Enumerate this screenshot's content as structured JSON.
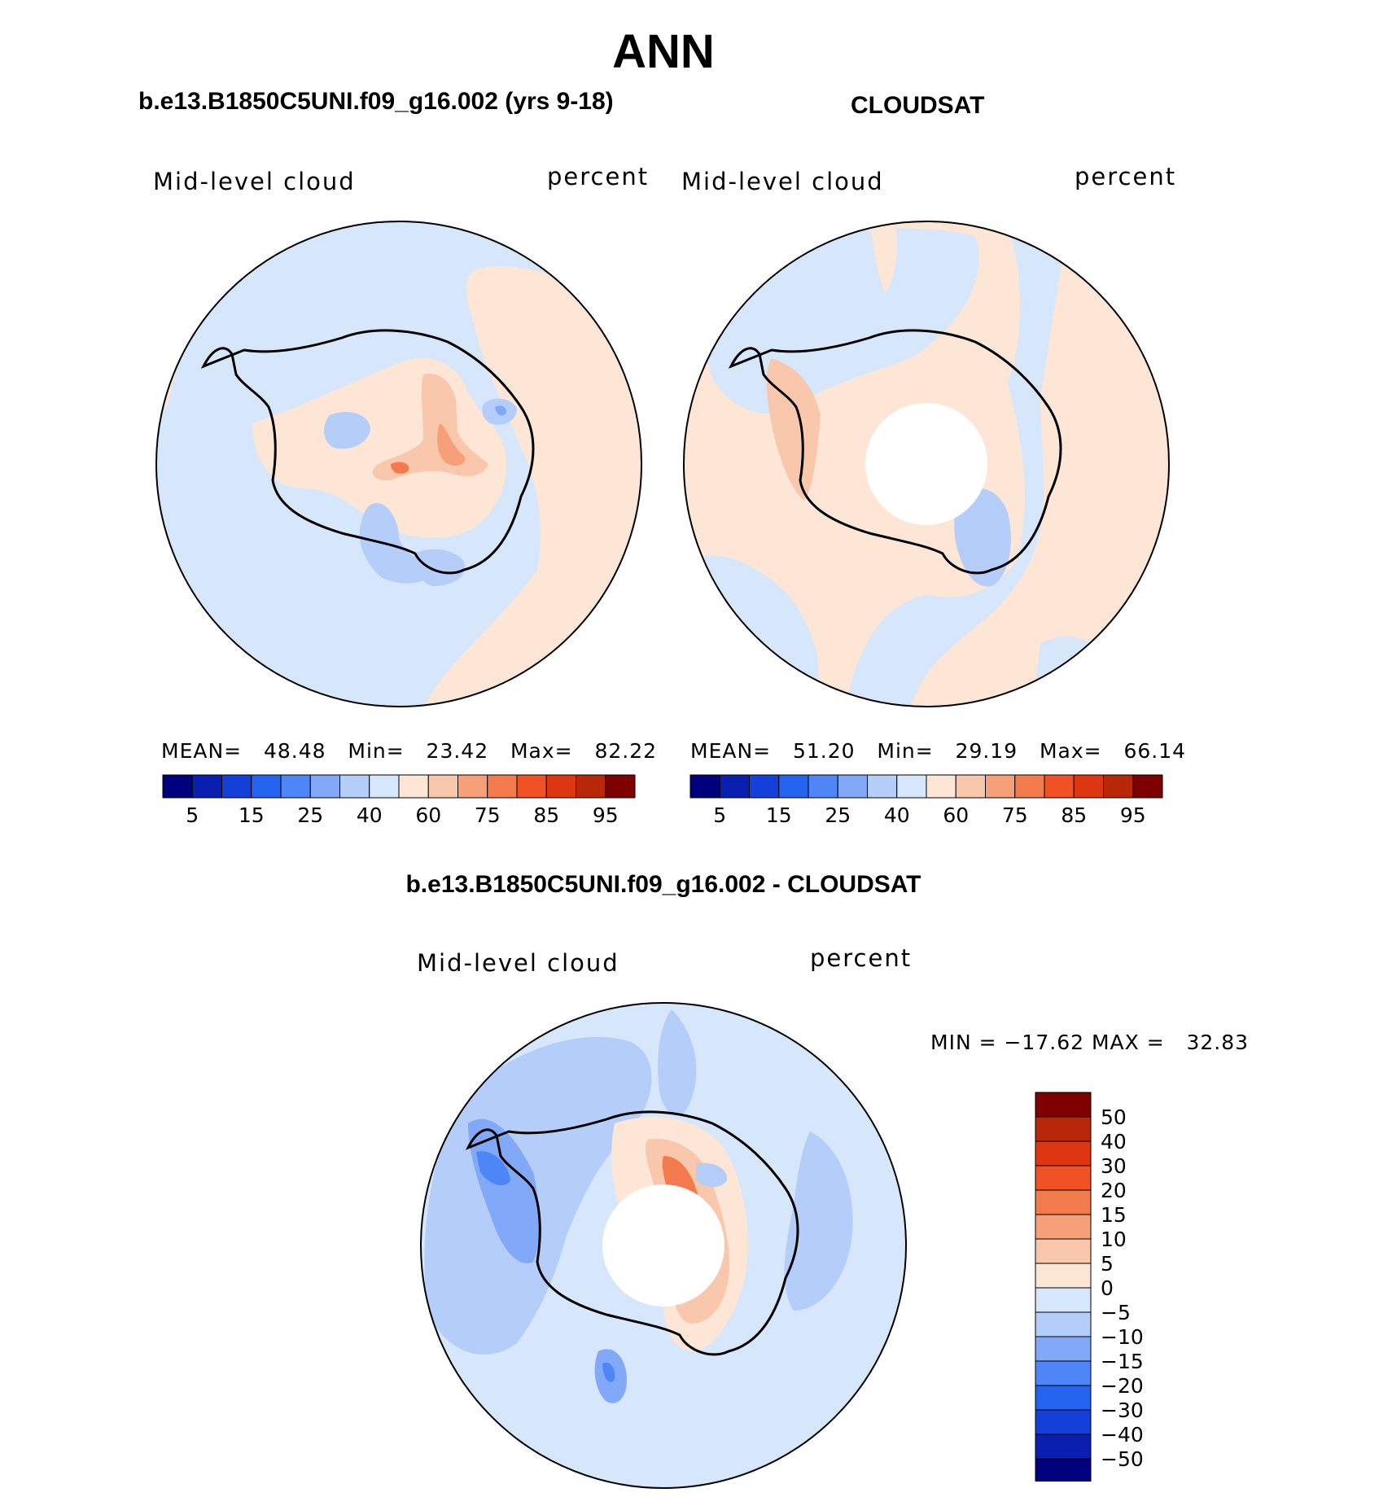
{
  "title": "ANN",
  "panels": [
    {
      "title": "b.e13.B1850C5UNI.f09_g16.002 (yrs 9-18)",
      "variable": "Mid-level cloud",
      "units": "percent",
      "stats": {
        "mean_label": "MEAN=",
        "mean": "48.48",
        "min_label": "Min=",
        "min": "23.42",
        "max_label": "Max=",
        "max": "82.22"
      }
    },
    {
      "title": "CLOUDSAT",
      "variable": "Mid-level cloud",
      "units": "percent",
      "stats": {
        "mean_label": "MEAN=",
        "mean": "51.20",
        "min_label": "Min=",
        "min": "29.19",
        "max_label": "Max=",
        "max": "66.14"
      }
    },
    {
      "title": "b.e13.B1850C5UNI.f09_g16.002 - CLOUDSAT",
      "variable": "Mid-level cloud",
      "units": "percent",
      "minmax_text": "MIN = −17.62 MAX =   32.83"
    }
  ],
  "colorbar_abs": {
    "colors": [
      "#00007f",
      "#0a1fb0",
      "#1340d8",
      "#2463f0",
      "#4f86f7",
      "#82a8f8",
      "#b5cdf9",
      "#d6e7fb",
      "#fde6d6",
      "#f9c7ab",
      "#f5a078",
      "#f37a4c",
      "#f05125",
      "#dd3610",
      "#b82708",
      "#7f0000"
    ],
    "tick_labels": [
      "5",
      "15",
      "25",
      "40",
      "60",
      "75",
      "85",
      "95"
    ]
  },
  "colorbar_diff": {
    "colors": [
      "#00007f",
      "#0a1fb0",
      "#1340d8",
      "#2463f0",
      "#4f86f7",
      "#82a8f8",
      "#b5cdf9",
      "#d6e7fb",
      "#fde6d6",
      "#f9c7ab",
      "#f5a078",
      "#f37a4c",
      "#f05125",
      "#dd3610",
      "#b82708",
      "#7f0000"
    ],
    "tick_labels": [
      "50",
      "40",
      "30",
      "20",
      "15",
      "10",
      "5",
      "0",
      "−5",
      "−10",
      "−15",
      "−20",
      "−30",
      "−40",
      "−50"
    ]
  }
}
